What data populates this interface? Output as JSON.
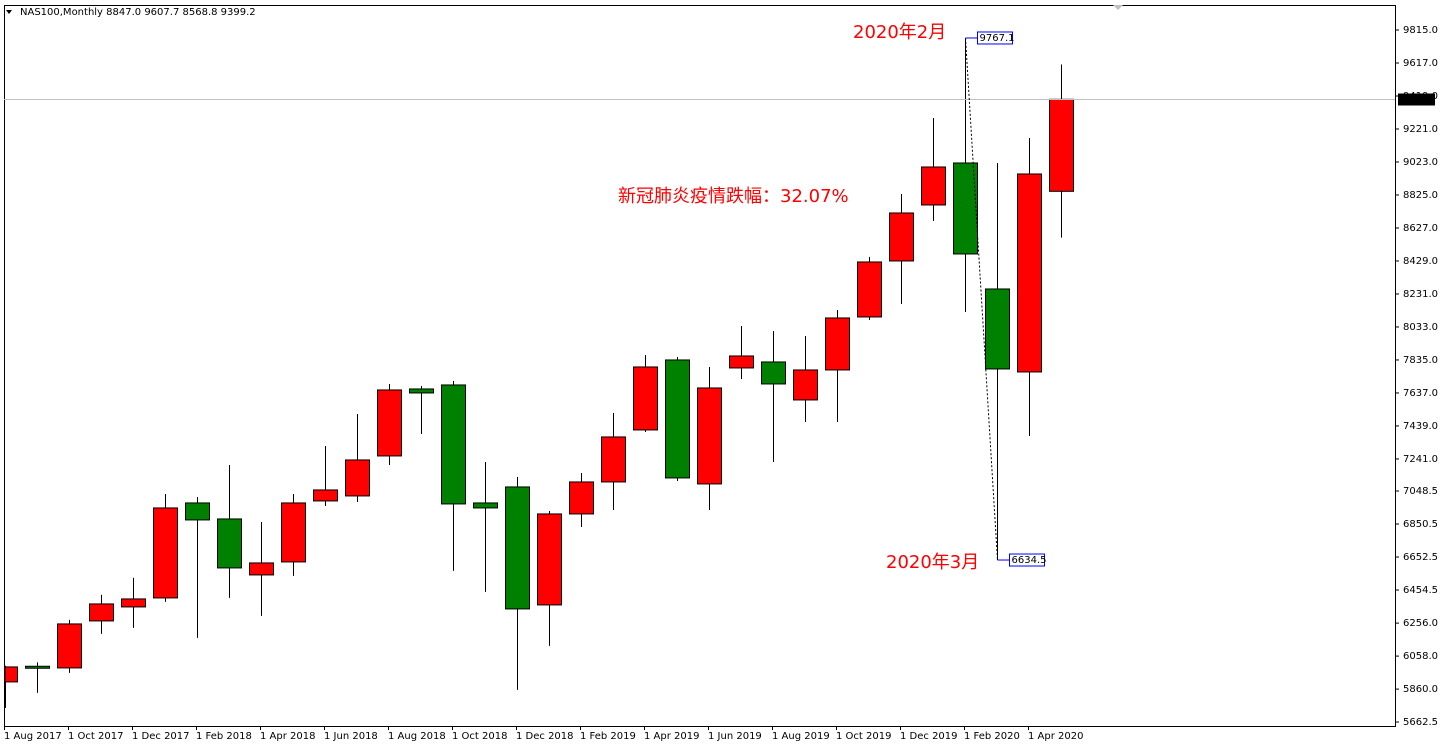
{
  "chart_data": {
    "type": "candlestick",
    "title": "NAS100,Monthly  8847.0 9607.7 8568.8 9399.2",
    "categories": [
      "1 Aug 2017",
      null,
      "1 Oct 2017",
      null,
      "1 Dec 2017",
      null,
      "1 Feb 2018",
      null,
      "1 Apr 2018",
      null,
      "1 Jun 2018",
      null,
      "1 Aug 2018",
      null,
      "1 Oct 2018",
      null,
      "1 Dec 2018",
      null,
      "1 Feb 2019",
      null,
      "1 Apr 2019",
      null,
      "1 Jun 2019",
      null,
      "1 Aug 2019",
      null,
      "1 Oct 2019",
      null,
      "1 Dec 2019",
      null,
      "1 Feb 2020",
      null,
      "1 Apr 2020",
      null
    ],
    "open": [
      5903,
      5997,
      5987,
      6269,
      6353,
      6407,
      6977,
      6881,
      6545,
      6623,
      6989,
      7019,
      7259,
      7661,
      7685,
      6977,
      7073,
      6365,
      6911,
      7103,
      7415,
      7835,
      7091,
      7787,
      7823,
      7595,
      7775,
      8093,
      8429,
      8765,
      9017,
      8261,
      7763,
      8847.0
    ],
    "high": [
      6000,
      6020,
      6275,
      6425,
      6527,
      7031,
      7013,
      7205,
      6863,
      7031,
      7319,
      7511,
      7691,
      7679,
      7709,
      7223,
      7133,
      6929,
      7157,
      7517,
      7865,
      7853,
      7793,
      8039,
      8009,
      7979,
      8135,
      8453,
      8831,
      9287,
      9767.1,
      9017,
      9167,
      9607.7
    ],
    "low": [
      5747,
      5837,
      5957,
      6191,
      6227,
      6383,
      6167,
      6407,
      6299,
      6539,
      6959,
      6983,
      7205,
      7391,
      6569,
      6443,
      5855,
      6119,
      6833,
      6935,
      7403,
      7109,
      6935,
      7721,
      7223,
      7463,
      7463,
      8075,
      8171,
      8669,
      8123,
      6634.5,
      7379,
      8568.8
    ],
    "close": [
      5993,
      5990,
      6251,
      6371,
      6401,
      6947,
      6875,
      6587,
      6617,
      6977,
      7055,
      7235,
      7655,
      7637,
      6971,
      6947,
      6341,
      6911,
      7103,
      7373,
      7793,
      7127,
      7667,
      7859,
      7691,
      7775,
      8087,
      8423,
      8717,
      8993,
      8471,
      7781,
      8951,
      9399.2
    ],
    "up_color": "#ff0000",
    "down_color": "#008000",
    "ylim": [
      5638.5,
      9965
    ],
    "yticks": [
      {
        "value": 9815.0,
        "label": "9815.0"
      },
      {
        "value": 9617.0,
        "label": "9617.0"
      },
      {
        "value": 9419.0,
        "label": "9419.0"
      },
      {
        "value": 9221.0,
        "label": "9221.0"
      },
      {
        "value": 9023.0,
        "label": "9023.0"
      },
      {
        "value": 8825.0,
        "label": "8825.0"
      },
      {
        "value": 8627.0,
        "label": "8627.0"
      },
      {
        "value": 8429.0,
        "label": "8429.0"
      },
      {
        "value": 8231.0,
        "label": "8231.0"
      },
      {
        "value": 8033.0,
        "label": "8033.0"
      },
      {
        "value": 7835.0,
        "label": "7835.0"
      },
      {
        "value": 7637.0,
        "label": "7637.0"
      },
      {
        "value": 7439.0,
        "label": "7439.0"
      },
      {
        "value": 7241.0,
        "label": "7241.0"
      },
      7048.5,
      6850.5,
      6652.5,
      6454.5,
      {
        "value": 6256.0,
        "label": "6256.0"
      },
      {
        "value": 6058.0,
        "label": "6058.0"
      },
      {
        "value": 5860.0,
        "label": "5860.0"
      },
      5662.5
    ],
    "grid": false,
    "annotations": {
      "feb_label": "2020年2月",
      "mar_label": "2020年3月",
      "drop_label": "新冠肺炎疫情跌幅：32.07%"
    }
  }
}
